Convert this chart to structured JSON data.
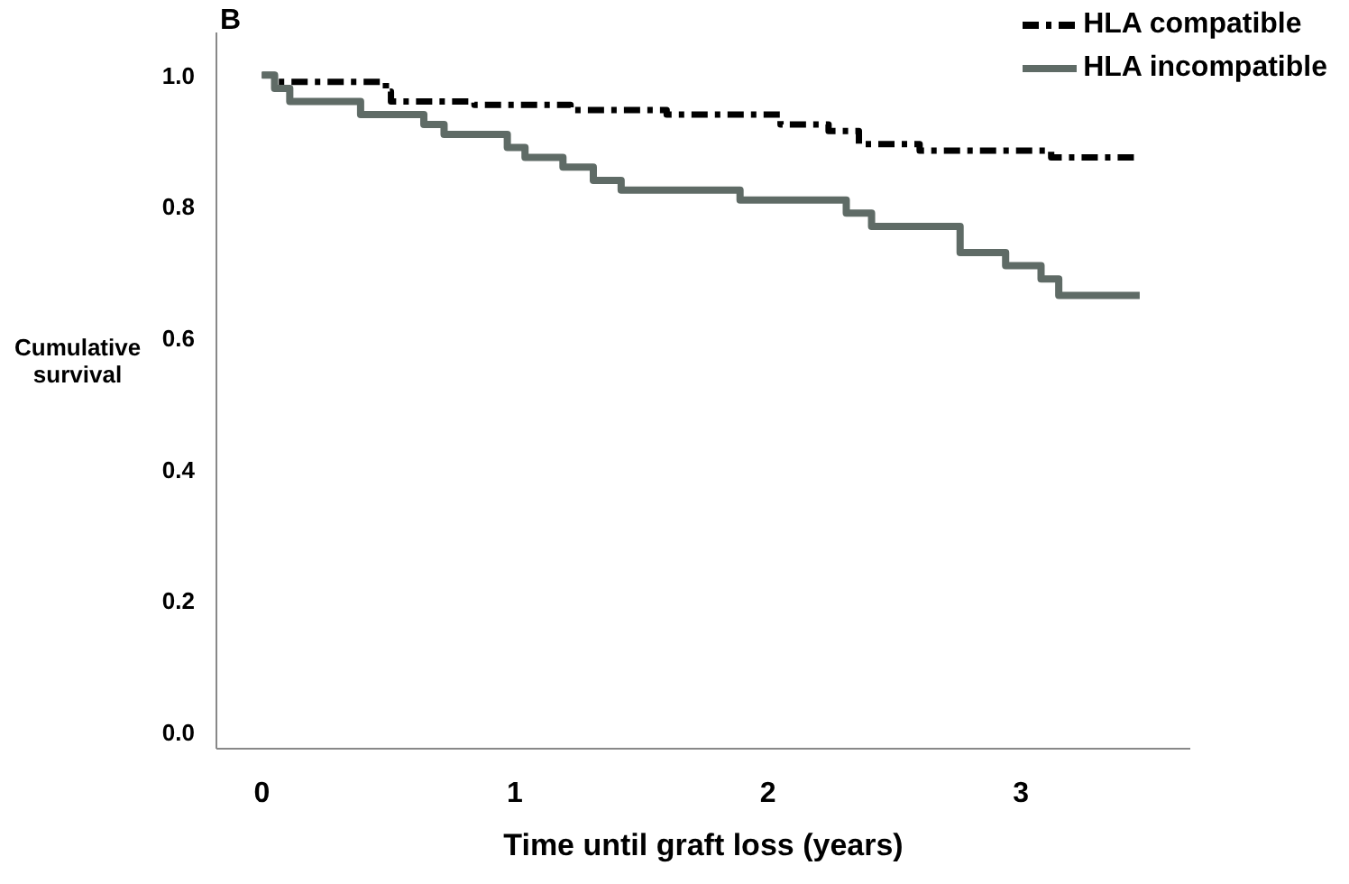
{
  "chart_data": {
    "type": "step",
    "title": "B",
    "xlabel": "Time until graft loss (years)",
    "ylabel": "Cumulative survival",
    "xlim": [
      -0.18,
      3.67
    ],
    "xticks": [
      0,
      1,
      2,
      3
    ],
    "ylim": [
      -0.025,
      1.065
    ],
    "yticks": [
      {
        "value": 0,
        "label": "0.0"
      },
      {
        "value": 0.2,
        "label": "0.2"
      },
      {
        "value": 0.4,
        "label": "0.4"
      },
      {
        "value": 0.6,
        "label": "0.6"
      },
      {
        "value": 0.8,
        "label": "0.8"
      },
      {
        "value": 1,
        "label": "1.0"
      }
    ],
    "grid": false,
    "legend": "top right",
    "marker": "none",
    "series": [
      {
        "name": "HLA compatible",
        "color": "#000000",
        "line_style": "dashed",
        "x": [
          0,
          0.05,
          0.49,
          0.51,
          0.84,
          1.22,
          1.6,
          2.05,
          2.24,
          2.36,
          2.6,
          3.12,
          3.47
        ],
        "values": [
          1,
          0.99,
          0.975,
          0.96,
          0.955,
          0.947,
          0.94,
          0.925,
          0.915,
          0.895,
          0.885,
          0.875,
          0.875
        ]
      },
      {
        "name": "HLA incompatible",
        "color": "#5f6b66",
        "line_style": "solid",
        "x": [
          0,
          0.05,
          0.11,
          0.39,
          0.64,
          0.72,
          0.97,
          1.04,
          1.19,
          1.31,
          1.42,
          1.89,
          2.31,
          2.41,
          2.76,
          2.94,
          3.08,
          3.15,
          3.47
        ],
        "values": [
          1,
          0.98,
          0.96,
          0.94,
          0.925,
          0.91,
          0.89,
          0.875,
          0.86,
          0.84,
          0.825,
          0.81,
          0.79,
          0.77,
          0.73,
          0.71,
          0.69,
          0.665,
          0.665
        ]
      }
    ]
  }
}
